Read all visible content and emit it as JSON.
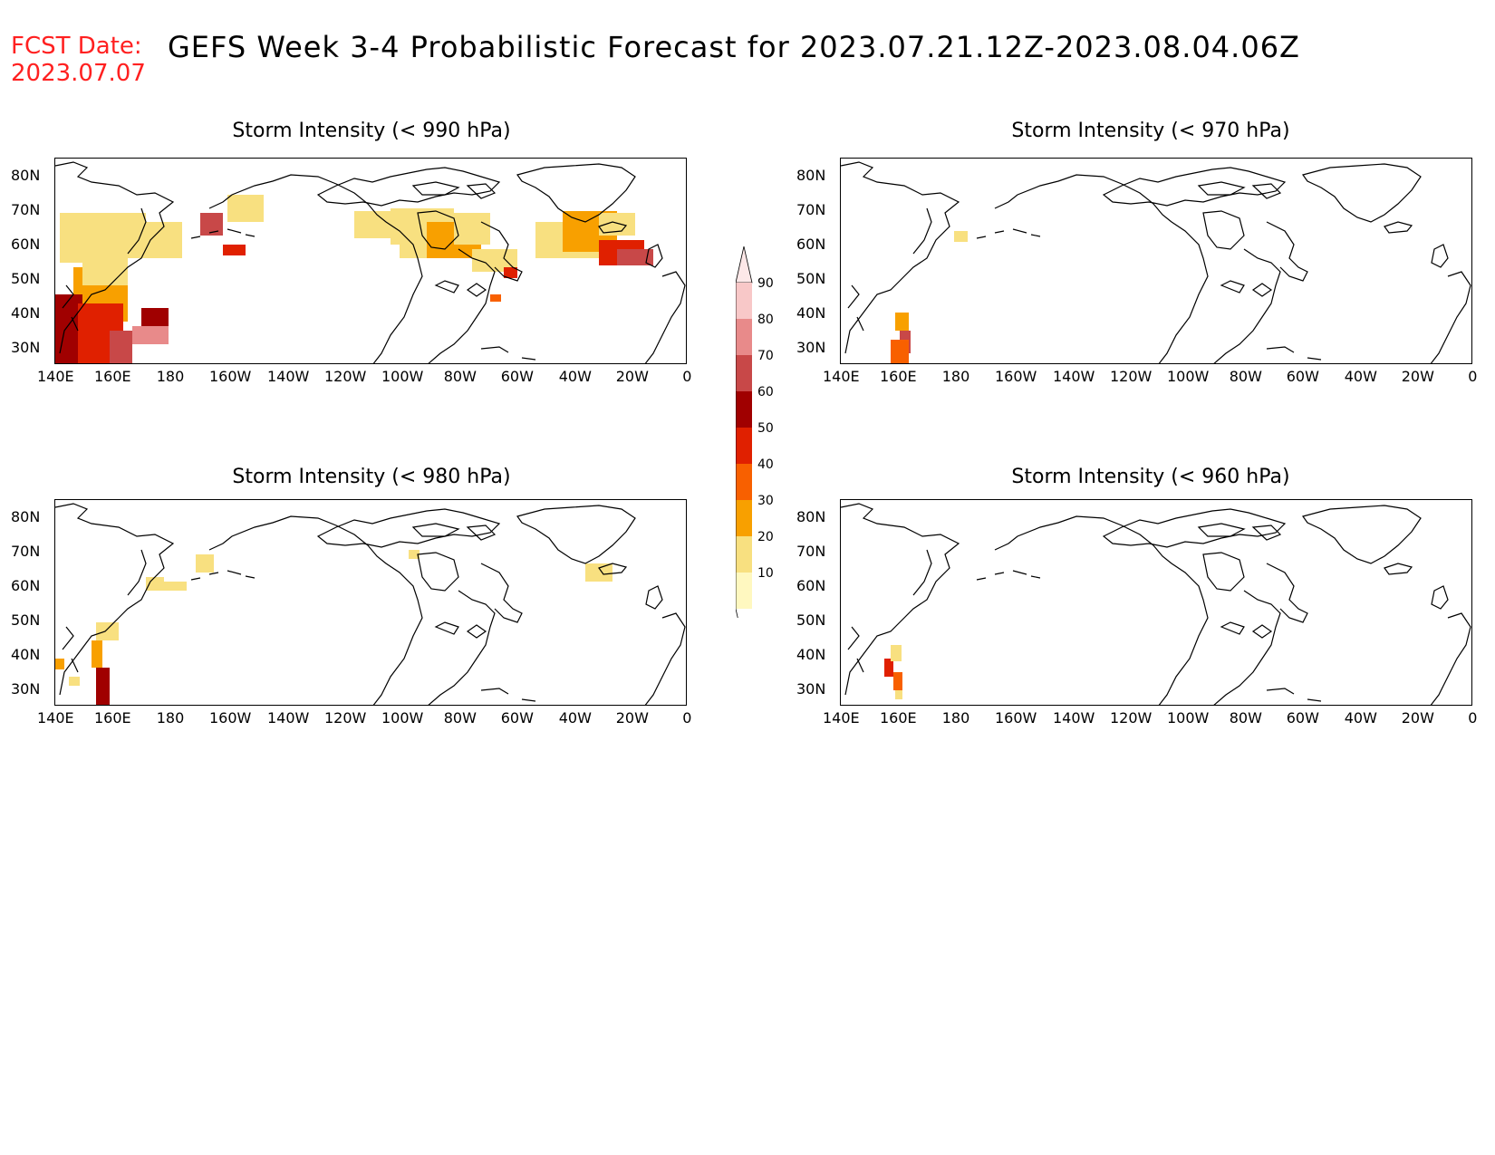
{
  "header": {
    "fcst_label": "FCST Date:",
    "fcst_date": "2023.07.07",
    "title": "GEFS Week 3-4 Probabilistic Forecast for 2023.07.21.12Z-2023.08.04.06Z"
  },
  "axes": {
    "x_ticks": [
      "140E",
      "160E",
      "180",
      "160W",
      "140W",
      "120W",
      "100W",
      "80W",
      "60W",
      "40W",
      "20W",
      "0"
    ],
    "y_ticks": [
      "80N",
      "70N",
      "60N",
      "50N",
      "40N",
      "30N"
    ]
  },
  "legend": {
    "levels": [
      "90",
      "80",
      "70",
      "60",
      "50",
      "40",
      "30",
      "20",
      "10"
    ],
    "colors": [
      "#f8c8c8",
      "#e88a8a",
      "#c84848",
      "#a00000",
      "#e02000",
      "#f86000",
      "#f8a000",
      "#f8e080",
      "#fff8c0"
    ]
  },
  "panels": [
    {
      "id": "p990",
      "title": "Storm Intensity (< 990 hPa)"
    },
    {
      "id": "p970",
      "title": "Storm Intensity (< 970 hPa)"
    },
    {
      "id": "p980",
      "title": "Storm Intensity (< 980 hPa)"
    },
    {
      "id": "p960",
      "title": "Storm Intensity (< 960 hPa)"
    }
  ]
}
